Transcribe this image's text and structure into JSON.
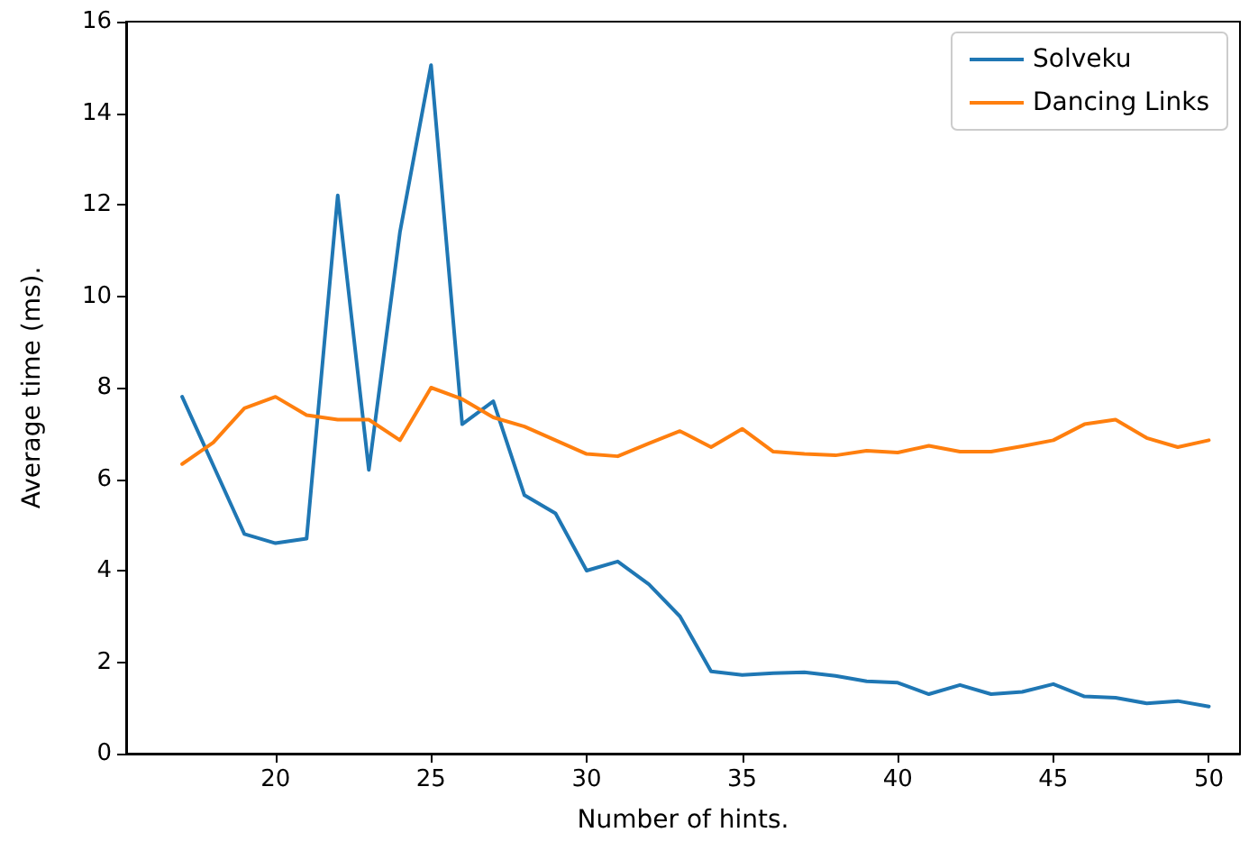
{
  "chart_data": {
    "type": "line",
    "xlabel": "Number of hints.",
    "ylabel": "Average time (ms).",
    "x": [
      17,
      18,
      19,
      20,
      21,
      22,
      23,
      24,
      25,
      26,
      27,
      28,
      29,
      30,
      31,
      32,
      33,
      34,
      35,
      36,
      37,
      38,
      39,
      40,
      41,
      42,
      43,
      44,
      45,
      46,
      47,
      48,
      49,
      50
    ],
    "series": [
      {
        "name": "Solveku",
        "color": "#1f77b4",
        "values": [
          7.8,
          6.3,
          4.8,
          4.6,
          4.7,
          12.2,
          6.2,
          11.4,
          15.05,
          7.2,
          7.7,
          5.65,
          5.25,
          4.0,
          4.2,
          3.7,
          3.0,
          1.8,
          1.72,
          1.76,
          1.78,
          1.7,
          1.58,
          1.55,
          1.3,
          1.5,
          1.3,
          1.35,
          1.52,
          1.25,
          1.22,
          1.1,
          1.15,
          1.03
        ]
      },
      {
        "name": "Dancing Links",
        "color": "#ff7f0e",
        "values": [
          6.33,
          6.8,
          7.55,
          7.8,
          7.4,
          7.3,
          7.3,
          6.85,
          8.0,
          7.75,
          7.35,
          7.15,
          6.85,
          6.55,
          6.5,
          6.78,
          7.05,
          6.7,
          7.1,
          6.6,
          6.55,
          6.52,
          6.62,
          6.58,
          6.73,
          6.6,
          6.6,
          6.72,
          6.85,
          7.2,
          7.3,
          6.9,
          6.7,
          6.85
        ]
      }
    ],
    "xlim": [
      15.2,
      51
    ],
    "xticks": [
      20,
      25,
      30,
      35,
      40,
      45,
      50
    ],
    "ylim": [
      0,
      16
    ],
    "yticks": [
      0,
      2,
      4,
      6,
      8,
      10,
      12,
      14,
      16
    ],
    "legend": "top right",
    "grid": false,
    "marker": "none",
    "line_style": "solid"
  }
}
